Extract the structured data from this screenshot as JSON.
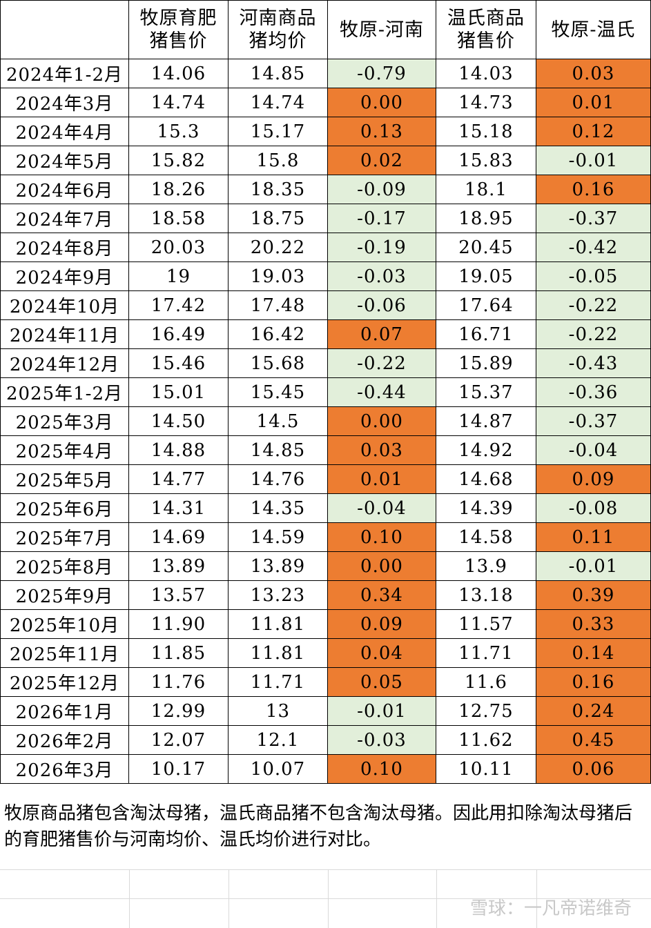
{
  "table": {
    "header": [
      [
        "牧原育肥",
        "猪售价"
      ],
      [
        "河南商品",
        "猪均价"
      ],
      [
        "牧原-河南"
      ],
      [
        "温氏商品",
        "猪售价"
      ],
      [
        "牧原-温氏"
      ]
    ],
    "rows": [
      [
        "2024年1-2月",
        "14.06",
        "14.85",
        "-0.79",
        "14.03",
        "0.03"
      ],
      [
        "2024年3月",
        "14.74",
        "14.74",
        "0.00",
        "14.73",
        "0.01"
      ],
      [
        "2024年4月",
        "15.3",
        "15.17",
        "0.13",
        "15.18",
        "0.12"
      ],
      [
        "2024年5月",
        "15.82",
        "15.8",
        "0.02",
        "15.83",
        "-0.01"
      ],
      [
        "2024年6月",
        "18.26",
        "18.35",
        "-0.09",
        "18.1",
        "0.16"
      ],
      [
        "2024年7月",
        "18.58",
        "18.75",
        "-0.17",
        "18.95",
        "-0.37"
      ],
      [
        "2024年8月",
        "20.03",
        "20.22",
        "-0.19",
        "20.45",
        "-0.42"
      ],
      [
        "2024年9月",
        "19",
        "19.03",
        "-0.03",
        "19.05",
        "-0.05"
      ],
      [
        "2024年10月",
        "17.42",
        "17.48",
        "-0.06",
        "17.64",
        "-0.22"
      ],
      [
        "2024年11月",
        "16.49",
        "16.42",
        "0.07",
        "16.71",
        "-0.22"
      ],
      [
        "2024年12月",
        "15.46",
        "15.68",
        "-0.22",
        "15.89",
        "-0.43"
      ],
      [
        "2025年1-2月",
        "15.01",
        "15.45",
        "-0.44",
        "15.37",
        "-0.36"
      ],
      [
        "2025年3月",
        "14.50",
        "14.5",
        "0.00",
        "14.87",
        "-0.37"
      ],
      [
        "2025年4月",
        "14.88",
        "14.85",
        "0.03",
        "14.92",
        "-0.04"
      ],
      [
        "2025年5月",
        "14.77",
        "14.76",
        "0.01",
        "14.68",
        "0.09"
      ],
      [
        "2025年6月",
        "14.31",
        "14.35",
        "-0.04",
        "14.39",
        "-0.08"
      ],
      [
        "2025年7月",
        "14.69",
        "14.59",
        "0.10",
        "14.58",
        "0.11"
      ],
      [
        "2025年8月",
        "13.89",
        "13.89",
        "0.00",
        "13.9",
        "-0.01"
      ],
      [
        "2025年9月",
        "13.57",
        "13.23",
        "0.34",
        "13.18",
        "0.39"
      ],
      [
        "2025年10月",
        "11.90",
        "11.81",
        "0.09",
        "11.57",
        "0.33"
      ],
      [
        "2025年11月",
        "11.85",
        "11.81",
        "0.04",
        "11.71",
        "0.14"
      ],
      [
        "2025年12月",
        "11.76",
        "11.71",
        "0.05",
        "11.6",
        "0.16"
      ],
      [
        "2026年1月",
        "12.99",
        "13",
        "-0.01",
        "12.75",
        "0.24"
      ],
      [
        "2026年2月",
        "12.07",
        "12.1",
        "-0.03",
        "11.62",
        "0.45"
      ],
      [
        "2026年3月",
        "10.17",
        "10.07",
        "0.10",
        "10.11",
        "0.06"
      ]
    ],
    "highlight_columns": [
      3,
      5
    ],
    "colors": {
      "positive": "#ED7D31",
      "negative": "#E2EFDA"
    }
  },
  "note": "牧原商品猪包含淘汰母猪，温氏商品猪不包含淘汰母猪。因此用扣除淘汰母猪后的育肥猪售价与河南均价、温氏均价进行对比。",
  "watermark": "雪球：一凡帝诺维奇"
}
